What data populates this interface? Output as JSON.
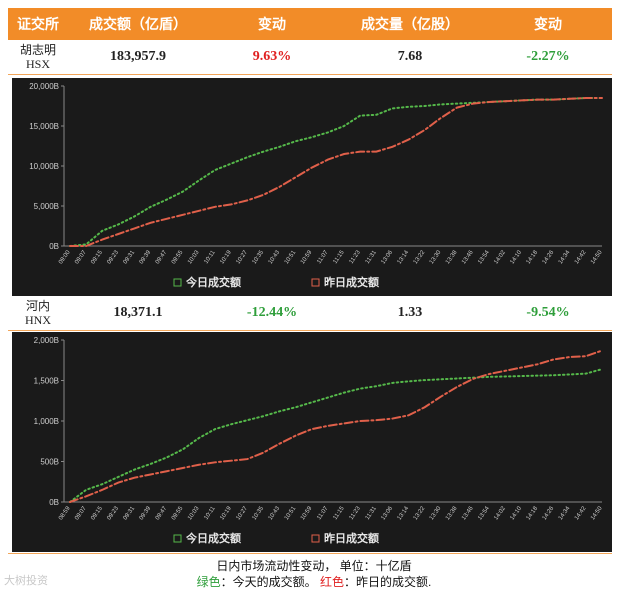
{
  "header": {
    "col_exchange": "证交所",
    "col_value": "成交额（亿盾）",
    "col_change1": "变动",
    "col_volume": "成交量（亿股）",
    "col_change2": "变动"
  },
  "hsx": {
    "name": "胡志明",
    "code": "HSX",
    "value": "183,957.9",
    "value_change": "9.63%",
    "volume": "7.68",
    "volume_change": "-2.27%"
  },
  "hnx": {
    "name": "河内",
    "code": "HNX",
    "value": "18,371.1",
    "value_change": "-12.44%",
    "volume": "1.33",
    "volume_change": "-9.54%"
  },
  "footer": {
    "line1": "日内市场流动性变动，  单位：十亿盾",
    "green_label": "绿色",
    "green_text": "：今天的成交额。",
    "red_label": "红色",
    "red_text": "：昨日的成交额."
  },
  "watermark": "大树投资",
  "colors": {
    "today": "#55b84a",
    "yesterday": "#e0604a",
    "header_bg": "#f28c28",
    "chart_bg": "#1a1a1a"
  },
  "chart_data": [
    {
      "type": "line",
      "title": "",
      "legend": [
        "今日成交额",
        "昨日成交额"
      ],
      "legend_position": "bottom",
      "x": [
        "09:00",
        "09:07",
        "09:15",
        "09:23",
        "09:31",
        "09:39",
        "09:47",
        "09:55",
        "10:03",
        "10:11",
        "10:19",
        "10:27",
        "10:35",
        "10:43",
        "10:51",
        "10:59",
        "11:07",
        "11:15",
        "11:23",
        "11:31",
        "13:06",
        "13:14",
        "13:22",
        "13:30",
        "13:38",
        "13:46",
        "13:54",
        "14:02",
        "14:10",
        "14:18",
        "14:26",
        "14:34",
        "14:42",
        "14:50"
      ],
      "ylim": [
        0,
        20000
      ],
      "yticks": [
        "0B",
        "5,000B",
        "10,000B",
        "15,000B",
        "20,000B"
      ],
      "grid": false,
      "series": [
        {
          "name": "今日成交额",
          "style": "dotted",
          "values": [
            0,
            200,
            1900,
            2700,
            3700,
            4900,
            5800,
            6800,
            8200,
            9500,
            10300,
            11100,
            11800,
            12400,
            13100,
            13600,
            14200,
            15000,
            16300,
            16400,
            17200,
            17400,
            17500,
            17700,
            17800,
            17900,
            18000,
            18100,
            18200,
            18300,
            18300,
            18400,
            18500,
            18500
          ]
        },
        {
          "name": "昨日成交额",
          "style": "dashdot",
          "values": [
            0,
            0,
            800,
            1500,
            2200,
            2900,
            3400,
            3900,
            4400,
            4900,
            5200,
            5700,
            6400,
            7400,
            8600,
            9800,
            10800,
            11500,
            11800,
            11800,
            12400,
            13300,
            14500,
            16000,
            17300,
            17800,
            18000,
            18100,
            18200,
            18300,
            18300,
            18400,
            18500,
            18500
          ]
        }
      ]
    },
    {
      "type": "line",
      "title": "",
      "legend": [
        "今日成交额",
        "昨日成交额"
      ],
      "legend_position": "bottom",
      "x": [
        "08:59",
        "09:07",
        "09:15",
        "09:23",
        "09:31",
        "09:39",
        "09:47",
        "09:55",
        "10:03",
        "10:11",
        "10:19",
        "10:27",
        "10:35",
        "10:43",
        "10:51",
        "10:59",
        "11:07",
        "11:15",
        "11:23",
        "11:31",
        "13:06",
        "13:14",
        "13:22",
        "13:30",
        "13:38",
        "13:46",
        "13:54",
        "14:02",
        "14:10",
        "14:18",
        "14:26",
        "14:34",
        "14:42",
        "14:50"
      ],
      "ylim": [
        0,
        2000
      ],
      "yticks": [
        "0B",
        "500B",
        "1,000B",
        "1,500B",
        "2,000B"
      ],
      "grid": false,
      "series": [
        {
          "name": "今日成交额",
          "style": "dotted",
          "values": [
            0,
            150,
            220,
            310,
            400,
            470,
            550,
            650,
            790,
            900,
            960,
            1010,
            1060,
            1120,
            1170,
            1230,
            1290,
            1350,
            1400,
            1430,
            1470,
            1490,
            1505,
            1515,
            1525,
            1535,
            1545,
            1550,
            1555,
            1560,
            1565,
            1575,
            1585,
            1640
          ]
        },
        {
          "name": "昨日成交额",
          "style": "dashdot",
          "values": [
            0,
            70,
            150,
            240,
            300,
            340,
            380,
            420,
            460,
            490,
            510,
            530,
            610,
            720,
            820,
            900,
            940,
            970,
            1000,
            1010,
            1030,
            1070,
            1170,
            1300,
            1420,
            1520,
            1580,
            1620,
            1660,
            1700,
            1760,
            1790,
            1800,
            1870
          ]
        }
      ]
    }
  ]
}
